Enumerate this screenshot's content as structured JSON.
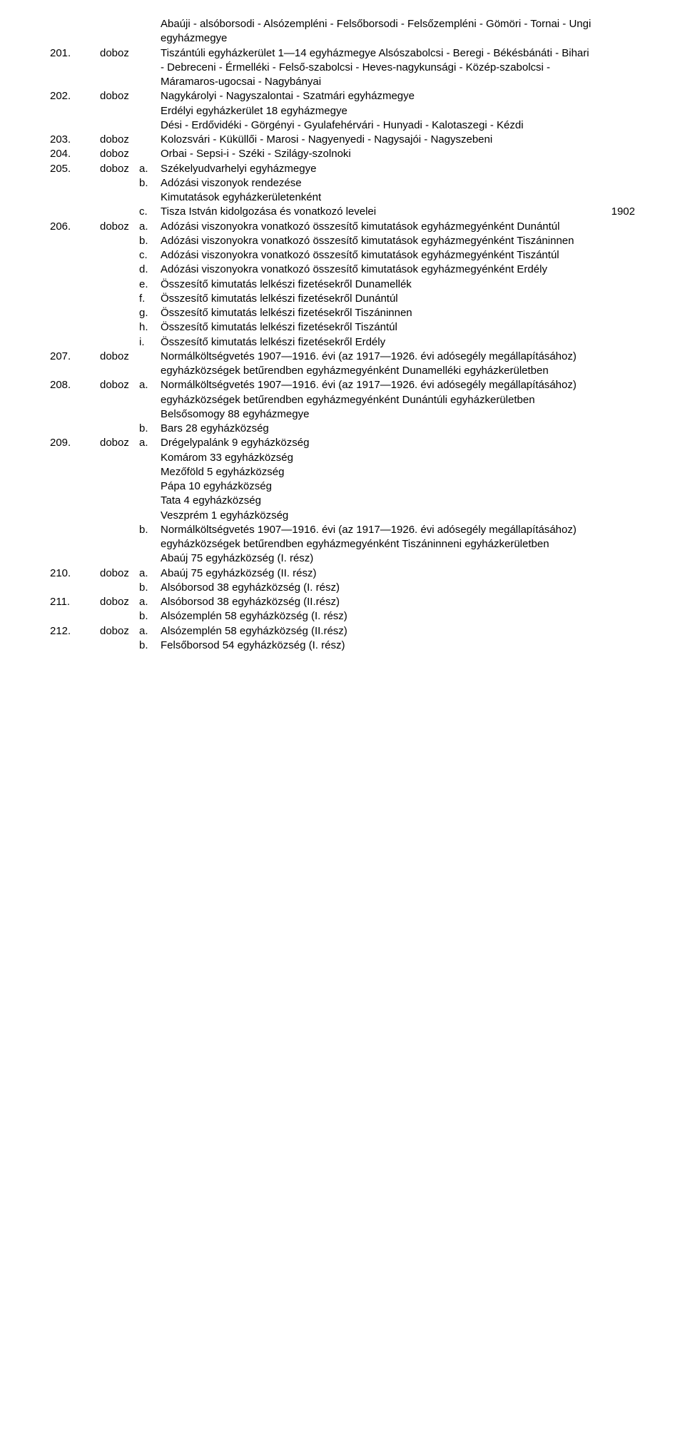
{
  "labels": {
    "doboz": "doboz"
  },
  "year": "1902",
  "rows": [
    {
      "box": "",
      "let": "",
      "txt": "Abaúji - alsóborsodi - Alsózempléni - Felsőborsodi - Felsőzempléni - Gömöri - Tornai - Ungi egyházmegye"
    },
    {
      "box": "201.",
      "let": "",
      "txt": "Tiszántúli egyházkerület 1—14 egyházmegye Alsószabolcsi - Beregi - Békésbánáti - Bihari - Debreceni - Érmelléki - Felső-szabolcsi - Heves-nagykunsági - Közép-szabolcsi - Máramaros-ugocsai - Nagybányai"
    },
    {
      "box": "202.",
      "let": "",
      "txt": "Nagykárolyi - Nagyszalontai - Szatmári egyházmegye"
    },
    {
      "box": "",
      "let": "",
      "txt": "Erdélyi egyházkerület 18 egyházmegye"
    },
    {
      "box": "",
      "let": "",
      "txt": "Dési - Erdővidéki - Görgényi - Gyulafehérvári - Hunyadi - Kalotaszegi - Kézdi"
    },
    {
      "box": "203.",
      "let": "",
      "txt": "Kolozsvári - Küküllői - Marosi - Nagyenyedi - Nagysajói - Nagyszebeni"
    },
    {
      "box": "204.",
      "let": "",
      "txt": "Orbai - Sepsi-i - Széki - Szilágy-szolnoki"
    },
    {
      "box": "205.",
      "let": "a.",
      "txt": "Székelyudvarhelyi egyházmegye"
    },
    {
      "box": "",
      "let": "b.",
      "txt": "Adózási viszonyok rendezése"
    },
    {
      "box": "",
      "let": "",
      "txt": "Kimutatások egyházkerületenként"
    },
    {
      "box": "",
      "let": "c.",
      "txt": "Tisza István kidolgozása és vonatkozó levelei",
      "year": true
    },
    {
      "box": "206.",
      "let": "a.",
      "txt": "Adózási viszonyokra vonatkozó összesítő kimutatások egyházmegyénként Dunántúl"
    },
    {
      "box": "",
      "let": "b.",
      "txt": "Adózási viszonyokra vonatkozó összesítő kimutatások egyházmegyénként Tiszáninnen"
    },
    {
      "box": "",
      "let": "c.",
      "txt": "Adózási viszonyokra vonatkozó összesítő kimutatások egyházmegyénként Tiszántúl"
    },
    {
      "box": "",
      "let": "d.",
      "txt": "Adózási viszonyokra vonatkozó összesítő kimutatások egyházmegyénként Erdély"
    },
    {
      "box": "",
      "let": "e.",
      "txt": "Összesítő kimutatás lelkészi fizetésekről Dunamellék"
    },
    {
      "box": "",
      "let": "f.",
      "txt": "Összesítő kimutatás lelkészi fizetésekről Dunántúl"
    },
    {
      "box": "",
      "let": "g.",
      "txt": "Összesítő kimutatás lelkészi fizetésekről Tiszáninnen"
    },
    {
      "box": "",
      "let": "h.",
      "txt": "Összesítő kimutatás lelkészi fizetésekről Tiszántúl"
    },
    {
      "box": "",
      "let": "i.",
      "txt": "Összesítő kimutatás lelkészi fizetésekről Erdély"
    },
    {
      "box": "207.",
      "let": "",
      "txt": "Normálköltségvetés 1907—1916. évi (az 1917—1926. évi adósegély megállapításához) egyházközségek betűrendben egyházmegyénként Dunamelléki egyházkerületben"
    },
    {
      "box": "208.",
      "let": "a.",
      "txt": "Normálköltségvetés 1907—1916. évi (az 1917—1926. évi adósegély megállapításához) egyházközségek betűrendben egyházmegyénként Dunántúli egyházkerületben"
    },
    {
      "box": "",
      "let": "",
      "txt": "Belsősomogy 88 egyházmegye"
    },
    {
      "box": "",
      "let": "b.",
      "txt": "Bars 28 egyházközség"
    },
    {
      "box": "209.",
      "let": "a.",
      "txt": "Drégelypalánk 9 egyházközség"
    },
    {
      "box": "",
      "let": "",
      "txt": "Komárom 33 egyházközség"
    },
    {
      "box": "",
      "let": "",
      "txt": "Mezőföld 5 egyházközség"
    },
    {
      "box": "",
      "let": "",
      "txt": "Pápa 10 egyházközség"
    },
    {
      "box": "",
      "let": "",
      "txt": "Tata 4 egyházközség"
    },
    {
      "box": "",
      "let": "",
      "txt": "Veszprém 1 egyházközség"
    },
    {
      "box": "",
      "let": "b.",
      "txt": "Normálköltségvetés 1907—1916. évi (az 1917—1926. évi adósegély megállapításához) egyházközségek betűrendben egyházmegyénként Tiszáninneni egyházkerületben"
    },
    {
      "box": "",
      "let": "",
      "txt": "Abaúj 75 egyházközség (I. rész)"
    },
    {
      "box": "210.",
      "let": "a.",
      "txt": "Abaúj 75 egyházközség (II. rész)"
    },
    {
      "box": "",
      "let": "b.",
      "txt": "Alsóborsod 38 egyházközség (I. rész)"
    },
    {
      "box": "211.",
      "let": "a.",
      "txt": "Alsóborsod 38 egyházközség (II.rész)"
    },
    {
      "box": "",
      "let": "b.",
      "txt": "Alsózemplén 58 egyházközség (I. rész)"
    },
    {
      "box": "212.",
      "let": "a.",
      "txt": "Alsózemplén 58 egyházközség (II.rész)"
    },
    {
      "box": "",
      "let": "b.",
      "txt": "Felsőborsod 54 egyházközség (I. rész)"
    }
  ]
}
